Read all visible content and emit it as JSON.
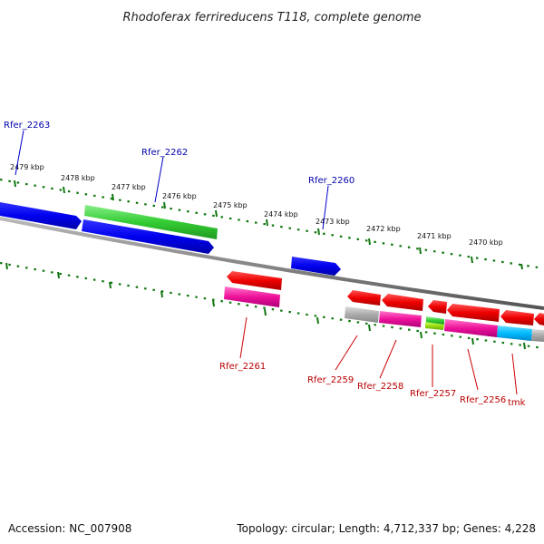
{
  "title": "Rhodoferax ferrireducens T118, complete genome",
  "footer": {
    "accession": "Accession: NC_007908",
    "topology": "Topology: circular; Length: 4,712,337 bp; Genes: 4,228"
  },
  "scale_labels": [
    "2479 kbp",
    "2478 kbp",
    "2477 kbp",
    "2476 kbp",
    "2475 kbp",
    "2474 kbp",
    "2473 kbp",
    "2472 kbp",
    "2471 kbp",
    "2470 kbp"
  ],
  "gene_labels_top": [
    "Rfer_2263",
    "Rfer_2262",
    "Rfer_2260"
  ],
  "gene_labels_bottom": [
    "Rfer_2261",
    "Rfer_2259",
    "Rfer_2258",
    "Rfer_2257",
    "Rfer_2256",
    "tmk"
  ],
  "colors": {
    "cds": "#0000ee",
    "gene_green": "#33cc33",
    "red": "#ee0000",
    "magenta": "#ee1199",
    "gray": "#aaaaaa",
    "cyan": "#00bbff",
    "lime": "#99dd11",
    "scale": "#117711",
    "backbone": "#888888",
    "label_top": "#0000aa",
    "label_bottom": "#bb0000"
  }
}
